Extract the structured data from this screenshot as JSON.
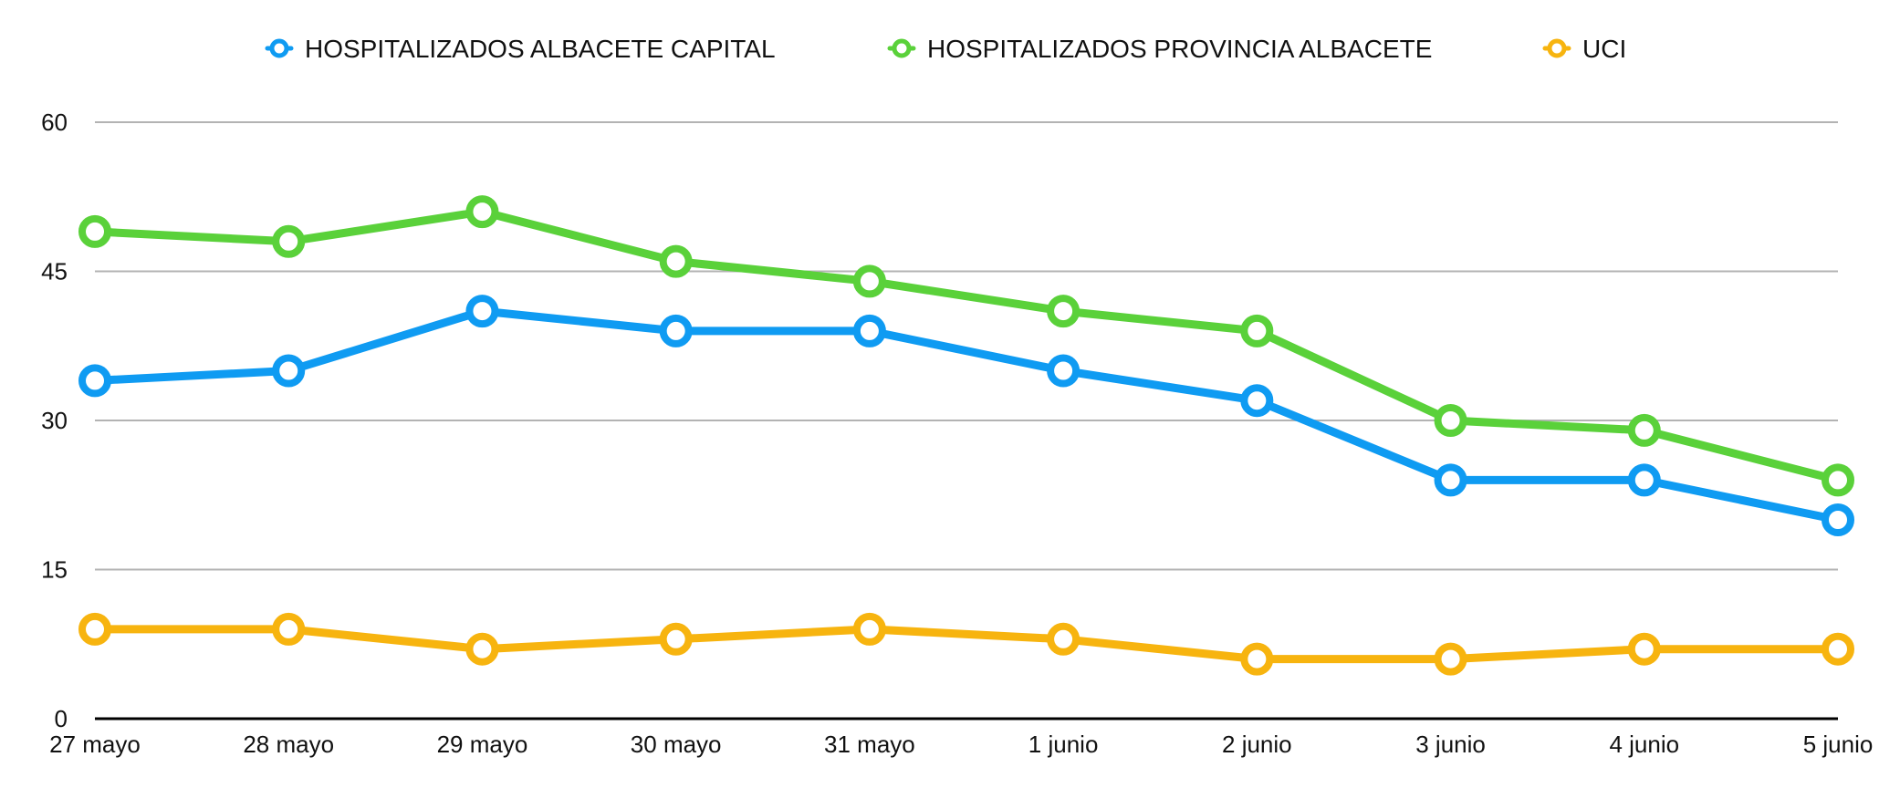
{
  "chart_data": {
    "type": "line",
    "categories": [
      "27 mayo",
      "28 mayo",
      "29 mayo",
      "30 mayo",
      "31 mayo",
      "1 junio",
      "2 junio",
      "3 junio",
      "4 junio",
      "5 junio"
    ],
    "series": [
      {
        "name": "HOSPITALIZADOS ALBACETE CAPITAL",
        "color": "#0f9bf2",
        "values": [
          34,
          35,
          41,
          39,
          39,
          35,
          32,
          24,
          24,
          20
        ]
      },
      {
        "name": "HOSPITALIZADOS PROVINCIA ALBACETE",
        "color": "#5ad13a",
        "values": [
          49,
          48,
          51,
          46,
          44,
          41,
          39,
          30,
          29,
          24
        ]
      },
      {
        "name": "UCI",
        "color": "#f7b40f",
        "values": [
          9,
          9,
          7,
          8,
          9,
          8,
          6,
          6,
          7,
          7
        ]
      }
    ],
    "ylim": [
      0,
      60
    ],
    "yticks": [
      0,
      15,
      30,
      45,
      60
    ],
    "ytick_labels": [
      "0",
      "15",
      "30",
      "45",
      "60"
    ],
    "grid": true,
    "legend_position": "top"
  }
}
